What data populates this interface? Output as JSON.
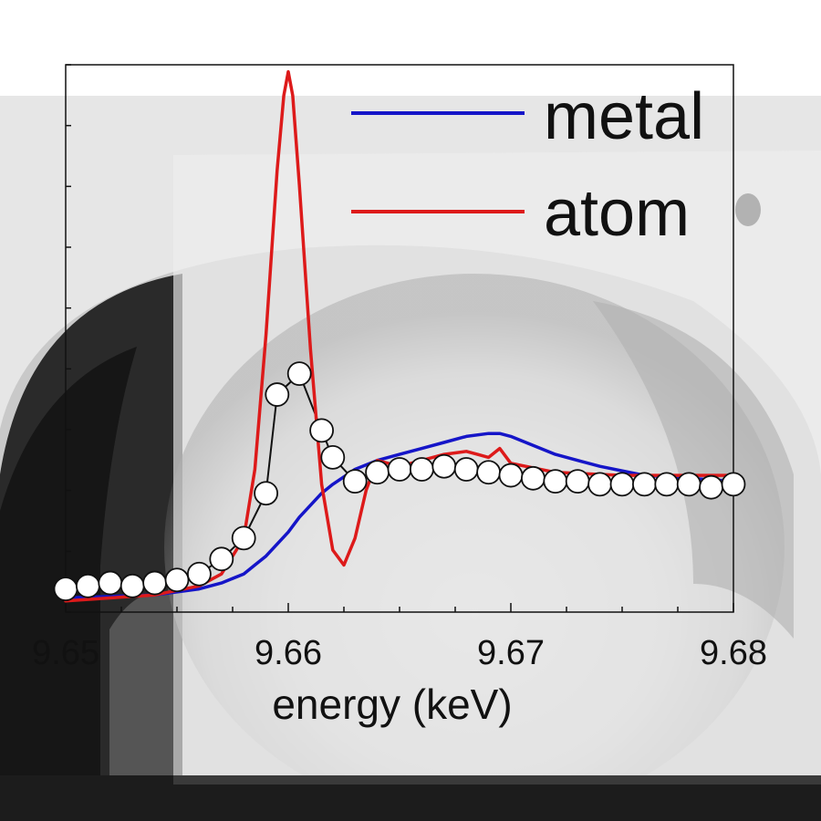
{
  "chart_data": {
    "type": "line",
    "title": "",
    "xlabel": "energy (keV)",
    "ylabel": "",
    "xlim": [
      9.65,
      9.68
    ],
    "ylim": [
      0,
      1.8
    ],
    "x_ticks": [
      "9.65",
      "9.66",
      "9.67",
      "9.68"
    ],
    "legend_position": "top-right",
    "series": [
      {
        "name": "metal",
        "color": "#1515c8",
        "x": [
          9.65,
          9.654,
          9.656,
          9.657,
          9.658,
          9.6585,
          9.659,
          9.6595,
          9.66,
          9.6605,
          9.661,
          9.6615,
          9.662,
          9.663,
          9.664,
          9.665,
          9.666,
          9.667,
          9.668,
          9.669,
          9.6695,
          9.67,
          9.671,
          9.672,
          9.674,
          9.676,
          9.678,
          9.68
        ],
        "values": [
          0.02,
          0.03,
          0.05,
          0.07,
          0.1,
          0.13,
          0.16,
          0.2,
          0.24,
          0.29,
          0.33,
          0.37,
          0.4,
          0.45,
          0.48,
          0.5,
          0.52,
          0.54,
          0.56,
          0.57,
          0.57,
          0.56,
          0.53,
          0.5,
          0.46,
          0.43,
          0.42,
          0.41
        ]
      },
      {
        "name": "atom",
        "color": "#dd1a1a",
        "x": [
          9.65,
          9.654,
          9.656,
          9.657,
          9.658,
          9.6585,
          9.659,
          9.6595,
          9.6598,
          9.66,
          9.6602,
          9.6605,
          9.661,
          9.6615,
          9.662,
          9.6625,
          9.663,
          9.6635,
          9.664,
          9.6645,
          9.665,
          9.6655,
          9.666,
          9.667,
          9.668,
          9.6685,
          9.669,
          9.6695,
          9.67,
          9.672,
          9.675,
          9.68
        ],
        "values": [
          0.01,
          0.03,
          0.06,
          0.1,
          0.22,
          0.45,
          0.9,
          1.45,
          1.7,
          1.78,
          1.7,
          1.4,
          0.85,
          0.4,
          0.18,
          0.13,
          0.22,
          0.38,
          0.48,
          0.47,
          0.45,
          0.47,
          0.48,
          0.5,
          0.51,
          0.5,
          0.49,
          0.52,
          0.47,
          0.44,
          0.43,
          0.43
        ]
      },
      {
        "name": "",
        "color": "#111111",
        "marker": "open-circle",
        "x": [
          9.65,
          9.651,
          9.652,
          9.653,
          9.654,
          9.655,
          9.656,
          9.657,
          9.658,
          9.659,
          9.6595,
          9.6605,
          9.6615,
          9.662,
          9.663,
          9.664,
          9.665,
          9.666,
          9.667,
          9.668,
          9.669,
          9.67,
          9.671,
          9.672,
          9.673,
          9.674,
          9.675,
          9.676,
          9.677,
          9.678,
          9.679,
          9.68
        ],
        "values": [
          0.05,
          0.06,
          0.07,
          0.06,
          0.07,
          0.08,
          0.1,
          0.15,
          0.22,
          0.37,
          0.7,
          0.77,
          0.58,
          0.49,
          0.41,
          0.44,
          0.45,
          0.45,
          0.46,
          0.45,
          0.44,
          0.43,
          0.42,
          0.41,
          0.41,
          0.4,
          0.4,
          0.4,
          0.4,
          0.4,
          0.39,
          0.4
        ]
      }
    ]
  }
}
